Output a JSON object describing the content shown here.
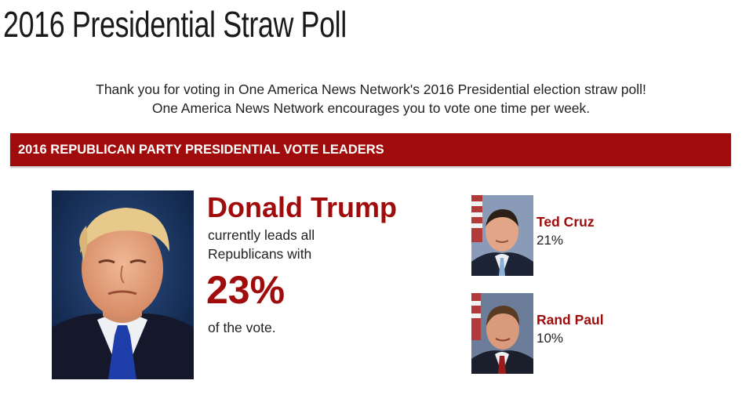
{
  "page": {
    "title": "2016 Presidential Straw Poll"
  },
  "intro": {
    "line1": "Thank you for voting in One America News Network's 2016 Presidential election straw poll!",
    "line2": "One America News Network encourages you to vote one time per week."
  },
  "banner": {
    "label": "2016 REPUBLICAN PARTY PRESIDENTIAL VOTE LEADERS"
  },
  "leader": {
    "name": "Donald Trump",
    "text_line1": "currently leads all",
    "text_line2": "Republicans with",
    "percent": "23%",
    "tail": "of the vote."
  },
  "runners": [
    {
      "name": "Ted Cruz",
      "percent": "21%"
    },
    {
      "name": "Rand Paul",
      "percent": "10%"
    }
  ],
  "colors": {
    "accent": "#a00b0b",
    "text": "#222222"
  }
}
